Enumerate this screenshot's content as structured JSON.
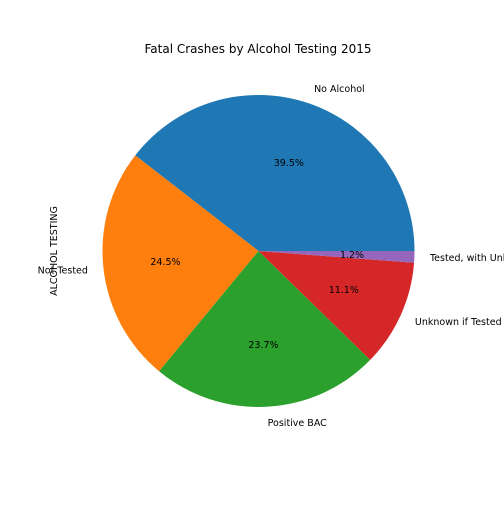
{
  "chart_data": {
    "type": "pie",
    "title": "Fatal Crashes by Alcohol Testing 2015",
    "ylabel": "ALCOHOL TESTING",
    "xlabel": "",
    "slices": [
      {
        "label": "No Alcohol",
        "value": 39.5,
        "pct_label": "39.5%",
        "color": "#1f77b4"
      },
      {
        "label": "Not Tested",
        "value": 24.5,
        "pct_label": "24.5%",
        "color": "#ff7f0e"
      },
      {
        "label": "Positive BAC",
        "value": 23.7,
        "pct_label": "23.7%",
        "color": "#2ca02c"
      },
      {
        "label": "Unknown if Tested",
        "value": 11.1,
        "pct_label": "11.1%",
        "color": "#d62728"
      },
      {
        "label": "Tested, with Unknown Results",
        "value": 1.2,
        "pct_label": "1.2%",
        "color": "#9467bd"
      }
    ],
    "start_angle": 0,
    "direction": "counterclockwise",
    "legend": "none"
  }
}
